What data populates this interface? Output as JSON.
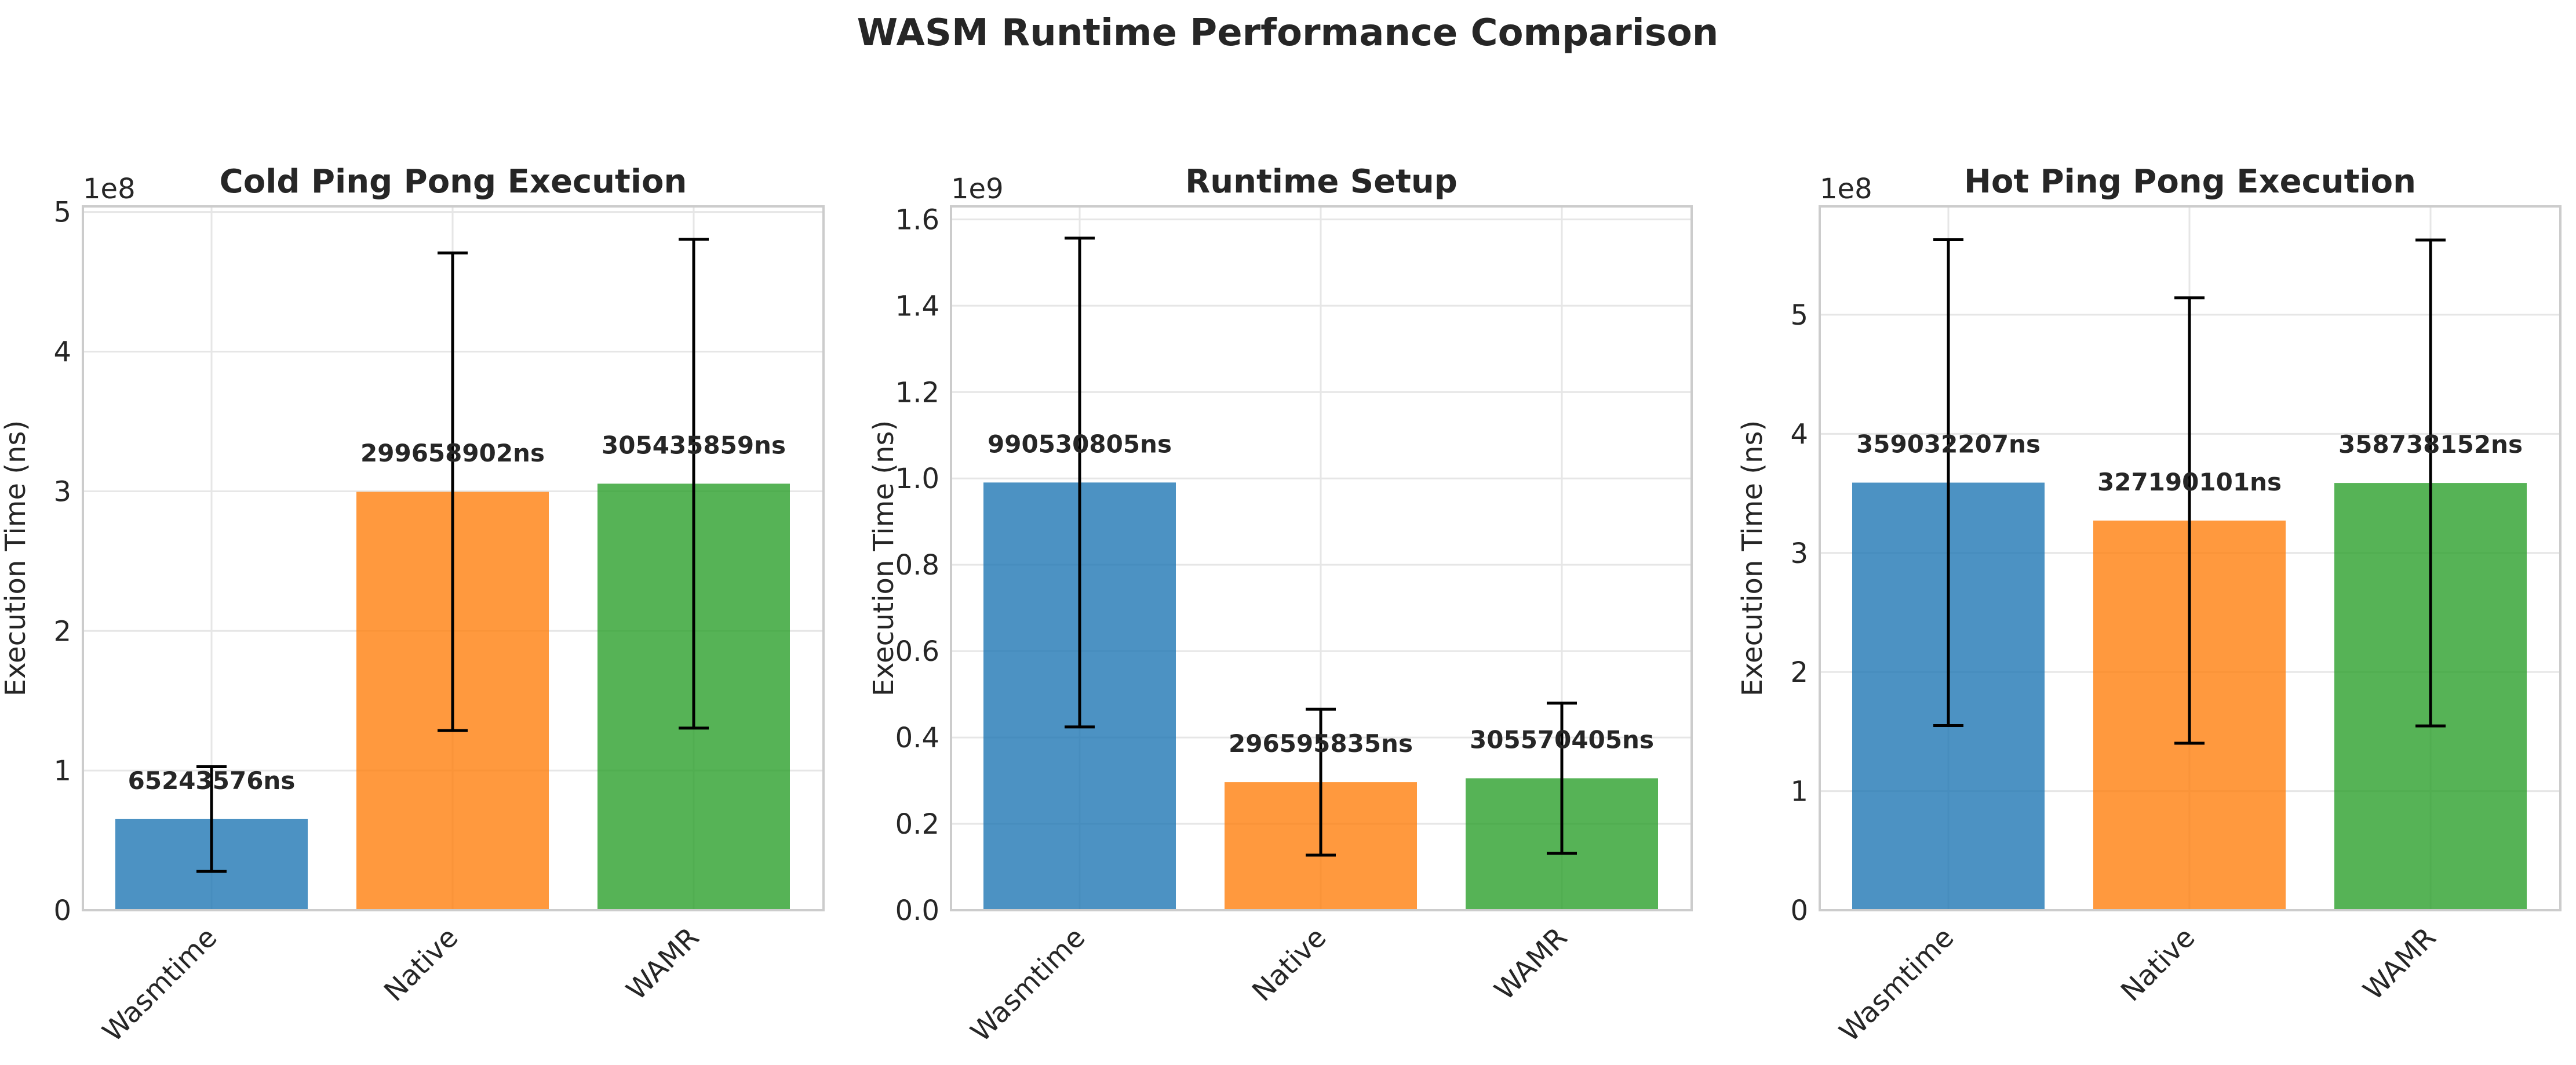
{
  "suptitle": "WASM Runtime Performance Comparison",
  "colors": {
    "Wasmtime": "#1f77b4",
    "Native": "#ff7f0e",
    "WAMR": "#2ca02c",
    "errorbar": "#000000",
    "grid": "#e6e6e6",
    "frame": "#cccccc"
  },
  "chart_data": [
    {
      "type": "bar",
      "title": "Cold Ping Pong Execution",
      "ylabel": "Execution Time (ns)",
      "offset_text": "1e8",
      "categories": [
        "Wasmtime",
        "Native",
        "WAMR"
      ],
      "values": [
        65243576,
        299658902,
        305435859
      ],
      "value_labels": [
        "65243576ns",
        "299658902ns",
        "305435859ns"
      ],
      "error": [
        37500000,
        171000000,
        175000000
      ],
      "ylim": [
        0,
        504000000
      ],
      "yticks": [
        0,
        100000000,
        200000000,
        300000000,
        400000000,
        500000000
      ],
      "ytick_labels": [
        "0",
        "1",
        "2",
        "3",
        "4",
        "5"
      ],
      "grid": true
    },
    {
      "type": "bar",
      "title": "Runtime Setup",
      "ylabel": "Execution Time (ns)",
      "offset_text": "1e9",
      "categories": [
        "Wasmtime",
        "Native",
        "WAMR"
      ],
      "values": [
        990530805,
        296595835,
        305570405
      ],
      "value_labels": [
        "990530805ns",
        "296595835ns",
        "305570405ns"
      ],
      "error": [
        566000000,
        169000000,
        174000000
      ],
      "ylim": [
        0,
        1630000000
      ],
      "yticks": [
        0,
        200000000,
        400000000,
        600000000,
        800000000,
        1000000000,
        1200000000,
        1400000000,
        1600000000
      ],
      "ytick_labels": [
        "0.0",
        "0.2",
        "0.4",
        "0.6",
        "0.8",
        "1.0",
        "1.2",
        "1.4",
        "1.6"
      ],
      "grid": true
    },
    {
      "type": "bar",
      "title": "Hot Ping Pong Execution",
      "ylabel": "Execution Time (ns)",
      "offset_text": "1e8",
      "categories": [
        "Wasmtime",
        "Native",
        "WAMR"
      ],
      "values": [
        359032207,
        327190101,
        358738152
      ],
      "value_labels": [
        "359032207ns",
        "327190101ns",
        "358738152ns"
      ],
      "error": [
        204000000,
        187000000,
        204000000
      ],
      "ylim": [
        0,
        591000000
      ],
      "yticks": [
        0,
        100000000,
        200000000,
        300000000,
        400000000,
        500000000
      ],
      "ytick_labels": [
        "0",
        "1",
        "2",
        "3",
        "4",
        "5"
      ],
      "grid": true
    }
  ]
}
